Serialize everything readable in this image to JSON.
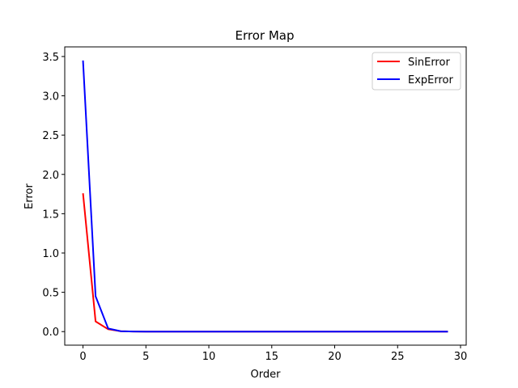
{
  "chart_data": {
    "type": "line",
    "title": "Error Map",
    "xlabel": "Order",
    "ylabel": "Error",
    "xlim": [
      -1.45,
      30.45
    ],
    "ylim": [
      -0.1725,
      3.6225
    ],
    "xticks": [
      0,
      5,
      10,
      15,
      20,
      25,
      30
    ],
    "yticks": [
      0.0,
      0.5,
      1.0,
      1.5,
      2.0,
      2.5,
      3.0,
      3.5
    ],
    "xtick_labels": [
      "0",
      "5",
      "10",
      "15",
      "20",
      "25",
      "30"
    ],
    "ytick_labels": [
      "0.0",
      "0.5",
      "1.0",
      "1.5",
      "2.0",
      "2.5",
      "3.0",
      "3.5"
    ],
    "grid": false,
    "legend_position": "top-right",
    "x": [
      0,
      1,
      2,
      3,
      4,
      5,
      6,
      7,
      8,
      9,
      10,
      11,
      12,
      13,
      14,
      15,
      16,
      17,
      18,
      19,
      20,
      21,
      22,
      23,
      24,
      25,
      26,
      27,
      28,
      29
    ],
    "series": [
      {
        "name": "SinError",
        "color": "#ff0000",
        "values": [
          1.76,
          0.13,
          0.03,
          0.005,
          0.001,
          0,
          0,
          0,
          0,
          0,
          0,
          0,
          0,
          0,
          0,
          0,
          0,
          0,
          0,
          0,
          0,
          0,
          0,
          0,
          0,
          0,
          0,
          0,
          0,
          0
        ]
      },
      {
        "name": "ExpError",
        "color": "#0000ff",
        "values": [
          3.45,
          0.45,
          0.04,
          0.005,
          0.001,
          0,
          0,
          0,
          0,
          0,
          0,
          0,
          0,
          0,
          0,
          0,
          0,
          0,
          0,
          0,
          0,
          0,
          0,
          0,
          0,
          0,
          0,
          0,
          0,
          0
        ]
      }
    ]
  }
}
